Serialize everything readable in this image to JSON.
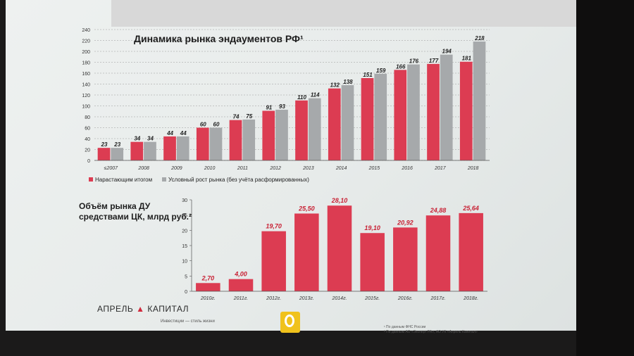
{
  "title_top": "Динамика рынка эндаументов  РФ¹",
  "title_bottom_line1": "Объём рынка ДУ",
  "title_bottom_line2": "средствами ЦК, млрд руб.²",
  "logo_text_left": "АПРЕЛЬ",
  "logo_text_right": "КАПИТАЛ",
  "logo_tagline": "Инвестиции — стиль жизни",
  "footnote_1": "¹ По данным ФНС России",
  "footnote_2": "² По данным АО «Эксперт РА», АО УК «Апрель Капитал»",
  "colors": {
    "red": "#dc3c52",
    "gray": "#a6a9ab"
  },
  "chart_data": [
    {
      "type": "bar",
      "title": "Динамика рынка эндаументов  РФ¹",
      "categories": [
        "≤2007",
        "2008",
        "2009",
        "2010",
        "2011",
        "2012",
        "2013",
        "2014",
        "2015",
        "2016",
        "2017",
        "2018"
      ],
      "series": [
        {
          "name": "Нарастающим итогом",
          "color": "red",
          "values": [
            23,
            34,
            44,
            60,
            74,
            91,
            110,
            132,
            151,
            166,
            177,
            181
          ]
        },
        {
          "name": "Условный рост рынка (без учёта расформированных)",
          "color": "gray",
          "values": [
            23,
            34,
            44,
            60,
            75,
            93,
            114,
            138,
            159,
            176,
            194,
            218
          ]
        }
      ],
      "ylim": [
        0,
        240
      ],
      "yticks": [
        0,
        20,
        40,
        60,
        80,
        100,
        120,
        140,
        160,
        180,
        200,
        220,
        240
      ],
      "grid": true,
      "legend": "bottom-left"
    },
    {
      "type": "bar",
      "title": "Объём рынка ДУ средствами ЦК, млрд руб.²",
      "categories": [
        "2010г.",
        "2011г.",
        "2012г.",
        "2013г.",
        "2014г.",
        "2015г.",
        "2016г.",
        "2017г.",
        "2018г."
      ],
      "values": [
        2.7,
        4.0,
        19.7,
        25.5,
        28.1,
        19.1,
        20.92,
        24.88,
        25.64
      ],
      "value_labels": [
        "2,70",
        "4,00",
        "19,70",
        "25,50",
        "28,10",
        "19,10",
        "20,92",
        "24,88",
        "25,64"
      ],
      "ylim": [
        0,
        30
      ],
      "yticks": [
        0,
        5,
        10,
        15,
        20,
        25,
        30
      ],
      "grid": false
    }
  ]
}
